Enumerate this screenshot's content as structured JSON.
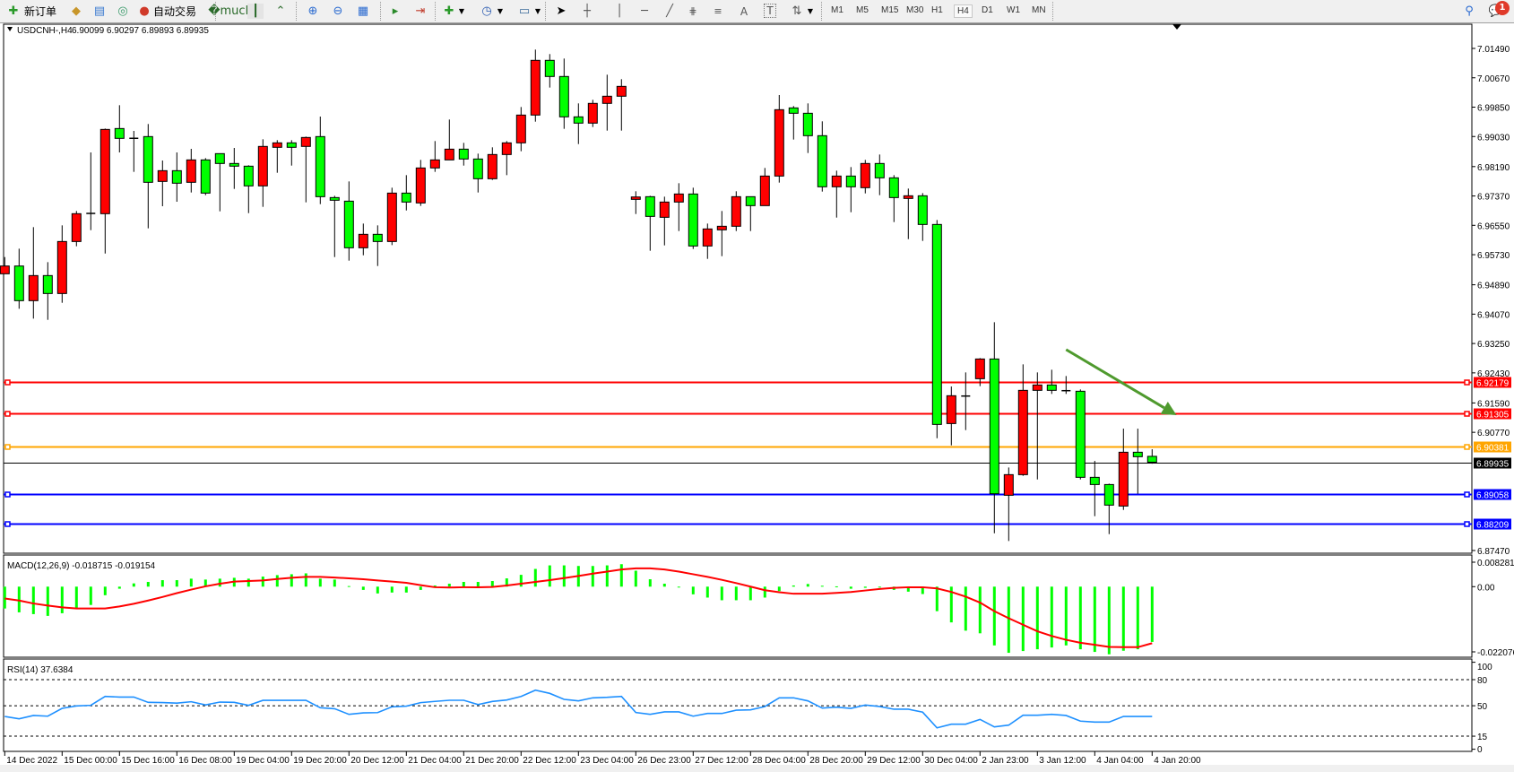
{
  "toolbar": {
    "new_order_label": "新订单",
    "auto_trade_label": "自动交易",
    "timeframes": [
      "M1",
      "M5",
      "M15",
      "M30",
      "H1",
      "H4",
      "D1",
      "W1",
      "MN"
    ],
    "active_timeframe": "H4",
    "notification_count": "1",
    "icons": [
      "new-order-icon",
      "history-icon",
      "server-icon",
      "signal-icon",
      "auto-trade-icon",
      "bar-chart-icon",
      "candle-chart-icon",
      "line-chart-icon",
      "zoom-in-icon",
      "zoom-out-icon",
      "tile-windows-icon",
      "autoscroll-icon",
      "chart-shift-icon",
      "indicators-icon",
      "periods-icon",
      "templates-icon",
      "cursor-icon",
      "crosshair-icon",
      "vertical-line-icon",
      "horizontal-line-icon",
      "trendline-icon",
      "fibonacci-icon",
      "fibo-fan-icon",
      "text-icon",
      "text-label-icon",
      "arrows-icon",
      "search-icon",
      "notification-icon"
    ]
  },
  "chart_data": [
    {
      "type": "candlestick",
      "symbol": "USDCNH-,H4",
      "ohlc_text": "6.90099 6.90297 6.89893 6.89935",
      "up_color": "#ff0000",
      "down_color": "#00ff00",
      "candles_ohlc": [
        [
          6.95197,
          6.95664,
          6.95197,
          6.95414
        ],
        [
          6.95414,
          6.95898,
          6.9422,
          6.94446
        ],
        [
          6.94446,
          6.96499,
          6.93945,
          6.95147
        ],
        [
          6.95147,
          6.95522,
          6.93911,
          6.94646
        ],
        [
          6.94646,
          6.96549,
          6.94387,
          6.96098
        ],
        [
          6.96098,
          6.9695,
          6.95965,
          6.96875
        ],
        [
          6.9688,
          6.98586,
          6.96415,
          6.96883
        ],
        [
          6.96875,
          6.99253,
          6.95764,
          6.99228
        ],
        [
          6.99253,
          6.99904,
          6.98586,
          6.98978
        ],
        [
          6.98978,
          6.99187,
          6.98043,
          6.9898
        ],
        [
          6.99028,
          6.99379,
          6.96466,
          6.97751
        ],
        [
          6.97776,
          6.9836,
          6.97083,
          6.98076
        ],
        [
          6.98076,
          6.98586,
          6.97208,
          6.97726
        ],
        [
          6.97751,
          6.98686,
          6.97467,
          6.98377
        ],
        [
          6.98377,
          6.98427,
          6.97392,
          6.9745
        ],
        [
          6.98552,
          6.98552,
          6.96941,
          6.98277
        ],
        [
          6.98277,
          6.98711,
          6.97567,
          6.98202
        ],
        [
          6.98202,
          6.98227,
          6.96891,
          6.97651
        ],
        [
          6.97651,
          6.98953,
          6.97066,
          6.98753
        ],
        [
          6.98728,
          6.98928,
          6.98018,
          6.98853
        ],
        [
          6.98853,
          6.98928,
          6.98218,
          6.98728
        ],
        [
          6.98753,
          6.99028,
          6.97192,
          6.99003
        ],
        [
          6.99028,
          6.99587,
          6.97142,
          6.9735
        ],
        [
          6.97325,
          6.97375,
          6.95664,
          6.9725
        ],
        [
          6.97225,
          6.97776,
          6.95564,
          6.95923
        ],
        [
          6.95923,
          6.96599,
          6.95714,
          6.96299
        ],
        [
          6.96299,
          6.96549,
          6.95414,
          6.96098
        ],
        [
          6.96098,
          6.97601,
          6.95998,
          6.9745
        ],
        [
          6.9745,
          6.97951,
          6.96966,
          6.972
        ],
        [
          6.97175,
          6.98377,
          6.97092,
          6.98152
        ],
        [
          6.98152,
          6.98903,
          6.98043,
          6.98377
        ],
        [
          6.98377,
          6.99504,
          6.98377,
          6.98677
        ],
        [
          6.98677,
          6.98853,
          6.98218,
          6.98402
        ],
        [
          6.98402,
          6.98552,
          6.97467,
          6.97851
        ],
        [
          6.97851,
          6.98728,
          6.97818,
          6.98527
        ],
        [
          6.98527,
          6.98903,
          6.97951,
          6.98853
        ],
        [
          6.98853,
          6.99854,
          6.98619,
          6.99629
        ],
        [
          6.99629,
          7.01457,
          6.99445,
          7.01157
        ],
        [
          7.01157,
          7.01332,
          7.00397,
          7.00706
        ],
        [
          7.00706,
          7.01207,
          6.99245,
          6.99579
        ],
        [
          6.99579,
          6.99955,
          6.98819,
          6.99404
        ],
        [
          6.99404,
          7.00055,
          6.99295,
          6.99955
        ],
        [
          6.99955,
          7.00756,
          6.99195,
          7.00155
        ],
        [
          7.00155,
          7.00631,
          6.99195,
          7.0043
        ],
        [
          6.97275,
          6.97501,
          6.96866,
          6.97342
        ],
        [
          6.9735,
          6.97375,
          6.9584,
          6.96799
        ],
        [
          6.96774,
          6.9735,
          6.9599,
          6.972
        ],
        [
          6.972,
          6.97726,
          6.9639,
          6.97425
        ],
        [
          6.97425,
          6.97601,
          6.9589,
          6.95973
        ],
        [
          6.95973,
          6.96599,
          6.95614,
          6.96449
        ],
        [
          6.96424,
          6.9695,
          6.95689,
          6.96524
        ],
        [
          6.96524,
          6.97501,
          6.9639,
          6.9735
        ],
        [
          6.9735,
          6.9735,
          6.9639,
          6.971
        ],
        [
          6.971,
          6.98152,
          6.971,
          6.97926
        ],
        [
          6.97926,
          7.00188,
          6.97743,
          6.99779
        ],
        [
          6.99829,
          6.9988,
          6.98945,
          6.99679
        ],
        [
          6.99679,
          6.99955,
          6.98569,
          6.99053
        ],
        [
          6.99053,
          6.99454,
          6.97492,
          6.97626
        ],
        [
          6.97626,
          6.98077,
          6.96766,
          6.97926
        ],
        [
          6.97926,
          6.98177,
          6.96916,
          6.97626
        ],
        [
          6.97601,
          6.98377,
          6.97442,
          6.98277
        ],
        [
          6.98277,
          6.98527,
          6.97392,
          6.97876
        ],
        [
          6.97876,
          6.97951,
          6.96641,
          6.97325
        ],
        [
          6.973,
          6.97576,
          6.96165,
          6.97375
        ],
        [
          6.97375,
          6.9745,
          6.96115,
          6.96574
        ],
        [
          6.96574,
          6.96699,
          6.90606,
          6.9099
        ],
        [
          6.91015,
          6.9205,
          6.90406,
          6.91792
        ],
        [
          6.9178,
          6.92443,
          6.90832,
          6.91783
        ],
        [
          6.92267,
          6.92843,
          6.92059,
          6.92818
        ],
        [
          6.92818,
          6.93845,
          6.87952,
          6.89054
        ],
        [
          6.89012,
          6.89788,
          6.87735,
          6.89588
        ],
        [
          6.89588,
          6.92668,
          6.89555,
          6.91942
        ],
        [
          6.91942,
          6.92443,
          6.89454,
          6.92092
        ],
        [
          6.92092,
          6.92518,
          6.91842,
          6.91942
        ],
        [
          6.9193,
          6.92342,
          6.91842,
          6.91933
        ],
        [
          6.91917,
          6.91967,
          6.89454,
          6.89513
        ],
        [
          6.89513,
          6.89972,
          6.88428,
          6.89312
        ],
        [
          6.89312,
          6.89337,
          6.87927,
          6.88737
        ],
        [
          6.88711,
          6.90873,
          6.88603,
          6.90214
        ],
        [
          6.90214,
          6.90873,
          6.89054,
          6.90089
        ],
        [
          6.90099,
          6.90297,
          6.89893,
          6.89935
        ]
      ],
      "x_tick_labels": [
        "14 Dec 2022",
        "15 Dec 00:00",
        "15 Dec 16:00",
        "16 Dec 08:00",
        "19 Dec 04:00",
        "19 Dec 20:00",
        "20 Dec 12:00",
        "21 Dec 04:00",
        "21 Dec 20:00",
        "22 Dec 12:00",
        "23 Dec 04:00",
        "26 Dec 23:00",
        "27 Dec 12:00",
        "28 Dec 04:00",
        "28 Dec 20:00",
        "29 Dec 12:00",
        "30 Dec 04:00",
        "2 Jan 23:00",
        "3 Jan 12:00",
        "4 Jan 04:00",
        "4 Jan 20:00"
      ],
      "y_tick_labels": [
        "7.01490",
        "7.00670",
        "6.99850",
        "6.99030",
        "6.98190",
        "6.97370",
        "6.96550",
        "6.95730",
        "6.94890",
        "6.94070",
        "6.93250",
        "6.92430",
        "6.91590",
        "6.90770",
        "6.87470"
      ],
      "y_range": [
        6.8739,
        7.0217
      ],
      "horizontal_lines": [
        {
          "price": "6.92179",
          "color": "#ff0000"
        },
        {
          "price": "6.91305",
          "color": "#ff0000"
        },
        {
          "price": "6.90381",
          "color": "#ffa500"
        },
        {
          "price": "6.89935",
          "color": "#000000"
        },
        {
          "price": "6.89058",
          "color": "#0000ff"
        },
        {
          "price": "6.88209",
          "color": "#0000ff"
        }
      ],
      "arrow": {
        "from_bar": 75,
        "from_price": 6.9308,
        "to_bar": 82.7,
        "to_price": 6.9125,
        "color": "#4f9a2e"
      }
    },
    {
      "type": "bar",
      "label": "MACD(12,26,9) -0.018715 -0.019154",
      "y_tick_labels": [
        "0.008281",
        "0.00",
        "-0.022076"
      ],
      "y_range": [
        -0.022076,
        0.008281
      ],
      "histogram_color": "#00ff00",
      "signal_color": "#ff0000",
      "histogram": [
        -0.0074,
        -0.0087,
        -0.0093,
        -0.0099,
        -0.009,
        -0.0074,
        -0.0062,
        -0.0029,
        -0.0007,
        0.0011,
        0.0016,
        0.0022,
        0.0022,
        0.0027,
        0.0024,
        0.0027,
        0.003,
        0.0027,
        0.0034,
        0.0039,
        0.0042,
        0.0045,
        0.0027,
        0.0024,
        0.0002,
        -0.0011,
        -0.0023,
        -0.002,
        -0.002,
        -0.0011,
        0.0004,
        0.001,
        0.0016,
        0.0016,
        0.0019,
        0.0028,
        0.004,
        0.006,
        0.0072,
        0.0072,
        0.007,
        0.007,
        0.0072,
        0.0076,
        0.0054,
        0.0025,
        0.001,
        -0.0003,
        -0.0026,
        -0.0037,
        -0.0046,
        -0.0046,
        -0.0046,
        -0.0037,
        -0.0015,
        0.0004,
        0.0009,
        0.0003,
        0.0001,
        -0.0007,
        -0.0004,
        -0.0001,
        -0.0011,
        -0.0017,
        -0.0025,
        -0.0083,
        -0.0121,
        -0.0149,
        -0.0158,
        -0.0199,
        -0.0224,
        -0.0218,
        -0.0212,
        -0.0206,
        -0.0199,
        -0.0212,
        -0.0221,
        -0.0229,
        -0.0217,
        -0.0212,
        -0.018715
      ],
      "signal": [
        -0.004,
        -0.0047,
        -0.0057,
        -0.0064,
        -0.007,
        -0.0074,
        -0.0074,
        -0.0074,
        -0.0067,
        -0.0058,
        -0.0047,
        -0.0035,
        -0.0022,
        -0.001,
        0.0001,
        0.001,
        0.0017,
        0.0019,
        0.0021,
        0.0026,
        0.003,
        0.0033,
        0.0033,
        0.0031,
        0.0028,
        0.0025,
        0.0021,
        0.0017,
        0.0013,
        0.0005,
        -0.0002,
        -0.0003,
        -0.0002,
        -0.0002,
        -0.0001,
        0.0004,
        0.001,
        0.0016,
        0.0022,
        0.0029,
        0.0036,
        0.0044,
        0.0051,
        0.0058,
        0.0062,
        0.0062,
        0.0058,
        0.0051,
        0.0042,
        0.0033,
        0.0023,
        0.0012,
        0.0,
        -0.0012,
        -0.0019,
        -0.0024,
        -0.0024,
        -0.0024,
        -0.0021,
        -0.0018,
        -0.0013,
        -0.0008,
        -0.0004,
        -0.0002,
        -0.0002,
        -0.0006,
        -0.0018,
        -0.0034,
        -0.0054,
        -0.0083,
        -0.0107,
        -0.0129,
        -0.0151,
        -0.0167,
        -0.018,
        -0.019,
        -0.0197,
        -0.0204,
        -0.0205,
        -0.0205,
        -0.019154
      ]
    },
    {
      "type": "line",
      "label": "RSI(14) 37.6384",
      "y_tick_labels": [
        "100",
        "80",
        "50",
        "15",
        "0"
      ],
      "levels": [
        80,
        50,
        15
      ],
      "y_range": [
        0,
        100
      ],
      "line_color": "#1e90ff",
      "values": [
        37.7,
        35,
        38.8,
        38,
        47,
        49.8,
        50.5,
        60.7,
        60,
        60,
        53.9,
        53.6,
        53,
        54.6,
        51,
        54.2,
        53.9,
        50.5,
        56.2,
        56.2,
        56.2,
        56.2,
        47.7,
        46.6,
        40.1,
        41.8,
        42.1,
        48.8,
        49.5,
        53.6,
        55,
        56.3,
        56.3,
        51.4,
        54.9,
        56.6,
        60.7,
        67.9,
        64.2,
        57.3,
        55.6,
        59.1,
        59.7,
        60.7,
        42.2,
        40.1,
        42.9,
        42.9,
        38.0,
        41.1,
        41.1,
        44.9,
        45.3,
        49.1,
        59.1,
        59.1,
        55.6,
        47.3,
        48.4,
        47,
        50.8,
        49.1,
        46,
        46,
        42.6,
        24.6,
        28.8,
        28.8,
        34.3,
        25.7,
        27.7,
        39.1,
        39.1,
        40.1,
        38.8,
        32.3,
        31.2,
        31.2,
        37.7,
        37.7,
        37.6384
      ]
    }
  ]
}
